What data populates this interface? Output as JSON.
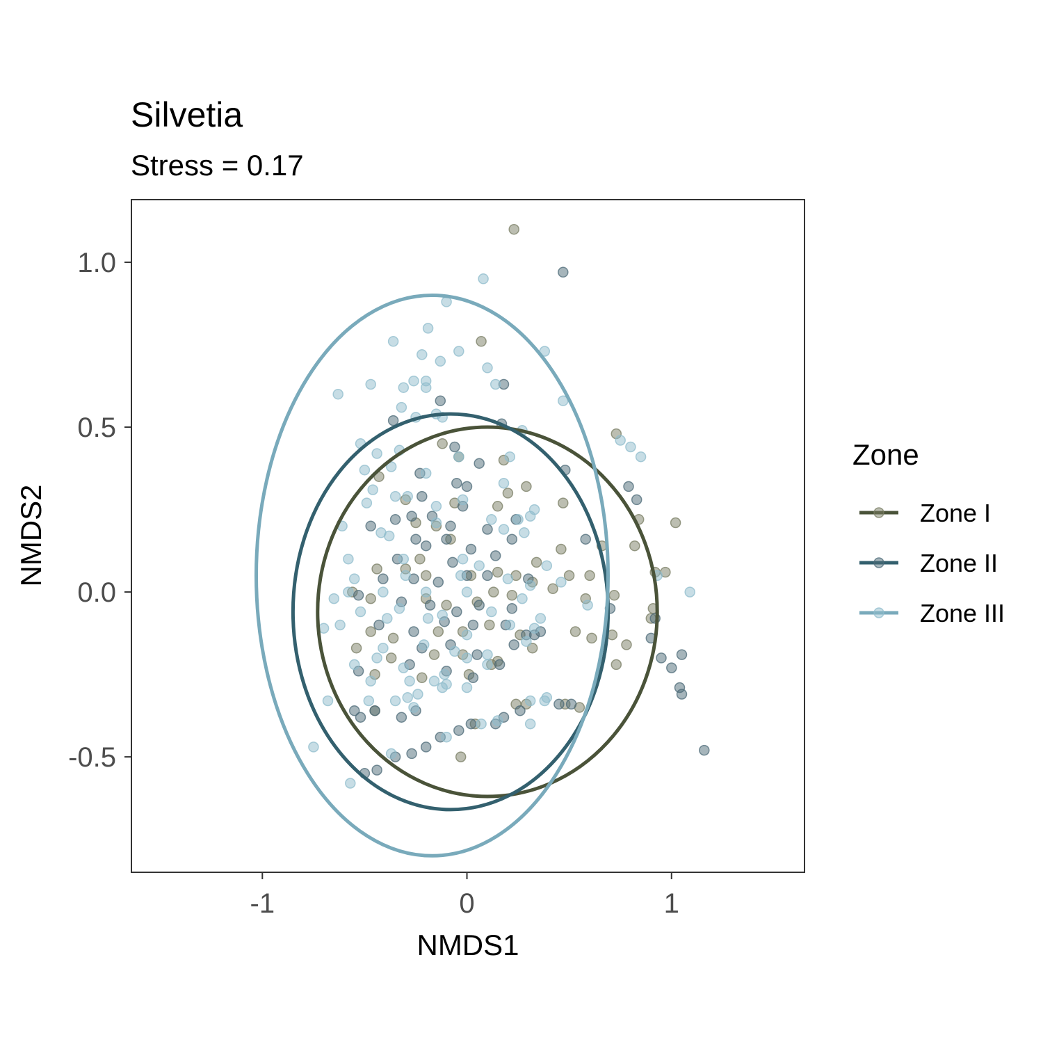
{
  "chart_data": {
    "type": "scatter",
    "title": "Silvetia",
    "subtitle": "Stress = 0.17",
    "xlabel": "NMDS1",
    "ylabel": "NMDS2",
    "xlim": [
      -1.64,
      1.65
    ],
    "ylim": [
      -0.85,
      1.19
    ],
    "x_ticks": [
      {
        "value": -1,
        "label": "-1"
      },
      {
        "value": 0,
        "label": "0"
      },
      {
        "value": 1,
        "label": "1"
      }
    ],
    "y_ticks": [
      {
        "value": -0.5,
        "label": "-0.5"
      },
      {
        "value": 0.0,
        "label": "0.0"
      },
      {
        "value": 0.5,
        "label": "0.5"
      },
      {
        "value": 1.0,
        "label": "1.0"
      }
    ],
    "grid": false,
    "legend": {
      "title": "Zone",
      "placement": "right"
    },
    "series": [
      {
        "name": "Zone I",
        "color": "#4a5339",
        "point_color": "#7a7d64",
        "ellipse": {
          "cx": 0.1,
          "cy": -0.06,
          "rx": 0.83,
          "ry": 0.56
        },
        "points": [
          [
            0.23,
            1.1
          ],
          [
            0.07,
            0.76
          ],
          [
            0.73,
            0.48
          ],
          [
            -0.12,
            0.45
          ],
          [
            -0.04,
            0.41
          ],
          [
            0.29,
            0.32
          ],
          [
            0.18,
            0.4
          ],
          [
            -0.3,
            0.28
          ],
          [
            -0.43,
            0.35
          ],
          [
            -0.06,
            0.27
          ],
          [
            0.15,
            0.26
          ],
          [
            0.47,
            0.27
          ],
          [
            0.2,
            0.3
          ],
          [
            -0.25,
            0.21
          ],
          [
            -0.15,
            0.2
          ],
          [
            0.66,
            0.14
          ],
          [
            0.84,
            0.22
          ],
          [
            0.82,
            0.14
          ],
          [
            0.46,
            0.13
          ],
          [
            0.92,
            0.06
          ],
          [
            -0.44,
            0.07
          ],
          [
            -0.3,
            0.07
          ],
          [
            -0.2,
            0.05
          ],
          [
            0.02,
            0.05
          ],
          [
            0.15,
            0.06
          ],
          [
            0.24,
            0.05
          ],
          [
            0.32,
            0.03
          ],
          [
            0.5,
            0.05
          ],
          [
            0.6,
            0.05
          ],
          [
            0.97,
            0.06
          ],
          [
            1.02,
            0.21
          ],
          [
            -0.56,
            0.0
          ],
          [
            -0.47,
            -0.02
          ],
          [
            -0.2,
            -0.02
          ],
          [
            -0.1,
            -0.04
          ],
          [
            0.05,
            -0.03
          ],
          [
            0.13,
            0.0
          ],
          [
            0.22,
            -0.01
          ],
          [
            0.42,
            0.01
          ],
          [
            0.72,
            -0.01
          ],
          [
            0.91,
            -0.05
          ],
          [
            -0.47,
            -0.12
          ],
          [
            -0.36,
            -0.14
          ],
          [
            -0.14,
            -0.12
          ],
          [
            -0.02,
            -0.12
          ],
          [
            0.11,
            -0.1
          ],
          [
            0.26,
            -0.13
          ],
          [
            0.53,
            -0.12
          ],
          [
            0.71,
            -0.13
          ],
          [
            0.61,
            -0.14
          ],
          [
            -0.54,
            -0.17
          ],
          [
            -0.37,
            -0.2
          ],
          [
            -0.16,
            -0.19
          ],
          [
            -0.02,
            -0.19
          ],
          [
            0.15,
            -0.21
          ],
          [
            0.32,
            -0.17
          ],
          [
            0.78,
            -0.16
          ],
          [
            0.73,
            -0.22
          ],
          [
            0.55,
            -0.35
          ],
          [
            0.48,
            -0.34
          ],
          [
            0.29,
            -0.34
          ],
          [
            -0.45,
            -0.25
          ],
          [
            -0.22,
            -0.26
          ],
          [
            0.01,
            -0.25
          ],
          [
            0.12,
            -0.22
          ],
          [
            -0.45,
            -0.36
          ],
          [
            0.04,
            -0.4
          ],
          [
            0.24,
            -0.34
          ],
          [
            -0.03,
            -0.5
          ],
          [
            0.9,
            -0.08
          ],
          [
            0.58,
            -0.02
          ],
          [
            -0.08,
            0.16
          ],
          [
            -0.23,
            0.1
          ],
          [
            0.34,
            0.09
          ]
        ]
      },
      {
        "name": "Zone II",
        "color": "#33606e",
        "point_color": "#4d6b78",
        "ellipse": {
          "cx": -0.08,
          "cy": -0.06,
          "rx": 0.77,
          "ry": 0.6
        },
        "points": [
          [
            0.47,
            0.97
          ],
          [
            0.18,
            0.63
          ],
          [
            -0.13,
            0.58
          ],
          [
            -0.36,
            0.52
          ],
          [
            0.17,
            0.51
          ],
          [
            -0.06,
            0.44
          ],
          [
            0.06,
            0.39
          ],
          [
            -0.23,
            0.36
          ],
          [
            -0.05,
            0.33
          ],
          [
            0.0,
            0.32
          ],
          [
            0.48,
            0.37
          ],
          [
            0.79,
            0.32
          ],
          [
            -0.22,
            0.29
          ],
          [
            -0.02,
            0.26
          ],
          [
            0.83,
            0.28
          ],
          [
            -0.35,
            0.22
          ],
          [
            -0.27,
            0.23
          ],
          [
            -0.17,
            0.23
          ],
          [
            0.1,
            0.19
          ],
          [
            0.24,
            0.22
          ],
          [
            -0.47,
            0.2
          ],
          [
            -0.25,
            0.16
          ],
          [
            -0.1,
            0.16
          ],
          [
            0.22,
            0.16
          ],
          [
            0.58,
            0.16
          ],
          [
            -0.34,
            0.1
          ],
          [
            -0.2,
            0.14
          ],
          [
            0.02,
            0.13
          ],
          [
            -0.07,
            0.09
          ],
          [
            0.14,
            0.11
          ],
          [
            -0.41,
            0.04
          ],
          [
            -0.26,
            0.04
          ],
          [
            -0.14,
            0.03
          ],
          [
            0.0,
            0.05
          ],
          [
            0.1,
            0.05
          ],
          [
            0.3,
            0.04
          ],
          [
            -0.53,
            -0.01
          ],
          [
            -0.32,
            -0.03
          ],
          [
            -0.18,
            -0.04
          ],
          [
            -0.05,
            -0.06
          ],
          [
            0.06,
            -0.04
          ],
          [
            0.22,
            -0.05
          ],
          [
            0.7,
            -0.05
          ],
          [
            0.92,
            -0.08
          ],
          [
            -0.43,
            -0.1
          ],
          [
            -0.26,
            -0.12
          ],
          [
            -0.11,
            -0.09
          ],
          [
            0.03,
            -0.1
          ],
          [
            0.19,
            -0.1
          ],
          [
            0.29,
            -0.13
          ],
          [
            0.9,
            -0.14
          ],
          [
            -0.22,
            -0.17
          ],
          [
            -0.08,
            -0.16
          ],
          [
            0.05,
            -0.19
          ],
          [
            0.23,
            -0.16
          ],
          [
            0.33,
            -0.13
          ],
          [
            0.95,
            -0.2
          ],
          [
            1.05,
            -0.19
          ],
          [
            -0.53,
            -0.24
          ],
          [
            -0.28,
            -0.22
          ],
          [
            -0.1,
            -0.24
          ],
          [
            0.03,
            -0.26
          ],
          [
            0.16,
            -0.22
          ],
          [
            1.0,
            -0.23
          ],
          [
            1.04,
            -0.29
          ],
          [
            1.05,
            -0.31
          ],
          [
            1.16,
            -0.48
          ],
          [
            -0.55,
            -0.36
          ],
          [
            -0.45,
            -0.36
          ],
          [
            -0.32,
            -0.38
          ],
          [
            -0.25,
            -0.36
          ],
          [
            -0.13,
            -0.44
          ],
          [
            -0.04,
            -0.42
          ],
          [
            0.02,
            -0.4
          ],
          [
            0.18,
            -0.38
          ],
          [
            0.26,
            -0.36
          ],
          [
            0.45,
            -0.34
          ],
          [
            0.51,
            -0.34
          ],
          [
            -0.35,
            -0.5
          ],
          [
            -0.27,
            -0.49
          ],
          [
            -0.2,
            -0.47
          ],
          [
            -0.5,
            -0.55
          ],
          [
            -0.44,
            -0.54
          ],
          [
            -0.52,
            -0.38
          ],
          [
            0.14,
            -0.4
          ],
          [
            -0.08,
            0.2
          ],
          [
            0.36,
            -0.12
          ]
        ]
      },
      {
        "name": "Zone III",
        "color": "#79aabb",
        "point_color": "#8fbccc",
        "ellipse": {
          "cx": -0.17,
          "cy": 0.05,
          "rx": 0.86,
          "ry": 0.85
        },
        "points": [
          [
            0.08,
            0.95
          ],
          [
            -0.1,
            0.88
          ],
          [
            -0.19,
            0.8
          ],
          [
            -0.36,
            0.76
          ],
          [
            -0.22,
            0.72
          ],
          [
            -0.04,
            0.73
          ],
          [
            0.38,
            0.73
          ],
          [
            -0.13,
            0.7
          ],
          [
            0.1,
            0.68
          ],
          [
            -0.47,
            0.63
          ],
          [
            -0.31,
            0.62
          ],
          [
            -0.26,
            0.64
          ],
          [
            -0.2,
            0.64
          ],
          [
            -0.2,
            0.62
          ],
          [
            0.14,
            0.63
          ],
          [
            0.47,
            0.58
          ],
          [
            -0.63,
            0.6
          ],
          [
            -0.32,
            0.56
          ],
          [
            -0.15,
            0.54
          ],
          [
            -0.25,
            0.53
          ],
          [
            -0.12,
            0.53
          ],
          [
            0.27,
            0.49
          ],
          [
            0.75,
            0.46
          ],
          [
            0.8,
            0.44
          ],
          [
            0.85,
            0.41
          ],
          [
            -0.52,
            0.45
          ],
          [
            -0.44,
            0.42
          ],
          [
            -0.33,
            0.43
          ],
          [
            -0.04,
            0.41
          ],
          [
            0.21,
            0.41
          ],
          [
            -0.5,
            0.37
          ],
          [
            -0.37,
            0.38
          ],
          [
            -0.2,
            0.36
          ],
          [
            0.18,
            0.33
          ],
          [
            -0.46,
            0.31
          ],
          [
            -0.35,
            0.29
          ],
          [
            -0.29,
            0.29
          ],
          [
            -0.49,
            0.27
          ],
          [
            -0.15,
            0.26
          ],
          [
            -0.02,
            0.28
          ],
          [
            0.31,
            0.23
          ],
          [
            -0.61,
            0.2
          ],
          [
            -0.42,
            0.18
          ],
          [
            0.12,
            0.22
          ],
          [
            0.25,
            0.22
          ],
          [
            0.33,
            0.25
          ],
          [
            -0.38,
            0.17
          ],
          [
            -0.15,
            0.21
          ],
          [
            0.18,
            0.19
          ],
          [
            0.28,
            0.18
          ],
          [
            -0.58,
            0.1
          ],
          [
            -0.31,
            0.1
          ],
          [
            -0.02,
            0.1
          ],
          [
            0.06,
            0.08
          ],
          [
            0.39,
            0.08
          ],
          [
            0.93,
            0.05
          ],
          [
            -0.55,
            0.04
          ],
          [
            -0.3,
            0.05
          ],
          [
            -0.03,
            0.05
          ],
          [
            0.2,
            0.04
          ],
          [
            0.31,
            0.02
          ],
          [
            -0.58,
            0.0
          ],
          [
            -0.41,
            0.0
          ],
          [
            -0.2,
            0.0
          ],
          [
            0.0,
            0.0
          ],
          [
            0.27,
            -0.02
          ],
          [
            0.46,
            0.03
          ],
          [
            1.09,
            0.0
          ],
          [
            -0.65,
            -0.02
          ],
          [
            -0.52,
            -0.06
          ],
          [
            -0.33,
            -0.05
          ],
          [
            -0.12,
            -0.07
          ],
          [
            0.12,
            -0.06
          ],
          [
            0.36,
            -0.08
          ],
          [
            0.59,
            -0.04
          ],
          [
            -0.62,
            -0.1
          ],
          [
            -0.39,
            -0.08
          ],
          [
            -0.19,
            -0.08
          ],
          [
            0.0,
            -0.13
          ],
          [
            0.21,
            -0.1
          ],
          [
            0.33,
            -0.11
          ],
          [
            -0.7,
            -0.11
          ],
          [
            -0.41,
            -0.17
          ],
          [
            -0.21,
            -0.16
          ],
          [
            -0.06,
            -0.18
          ],
          [
            0.1,
            -0.19
          ],
          [
            0.29,
            -0.15
          ],
          [
            -0.55,
            -0.22
          ],
          [
            -0.31,
            -0.23
          ],
          [
            -0.11,
            -0.25
          ],
          [
            0.0,
            -0.2
          ],
          [
            -0.47,
            -0.27
          ],
          [
            -0.28,
            -0.27
          ],
          [
            -0.16,
            -0.27
          ],
          [
            -0.12,
            -0.29
          ],
          [
            -0.68,
            -0.33
          ],
          [
            -0.48,
            -0.33
          ],
          [
            -0.35,
            -0.33
          ],
          [
            -0.29,
            -0.32
          ],
          [
            -0.24,
            -0.31
          ],
          [
            -0.26,
            -0.35
          ],
          [
            -0.1,
            -0.28
          ],
          [
            0.0,
            -0.29
          ],
          [
            0.15,
            -0.39
          ],
          [
            0.31,
            -0.33
          ],
          [
            0.39,
            -0.32
          ],
          [
            -0.1,
            -0.44
          ],
          [
            0.07,
            -0.4
          ],
          [
            0.31,
            -0.4
          ],
          [
            -0.75,
            -0.47
          ],
          [
            -0.57,
            -0.58
          ],
          [
            -0.37,
            -0.49
          ],
          [
            0.1,
            -0.22
          ],
          [
            -0.44,
            -0.2
          ],
          [
            0.38,
            -0.33
          ]
        ]
      }
    ]
  }
}
